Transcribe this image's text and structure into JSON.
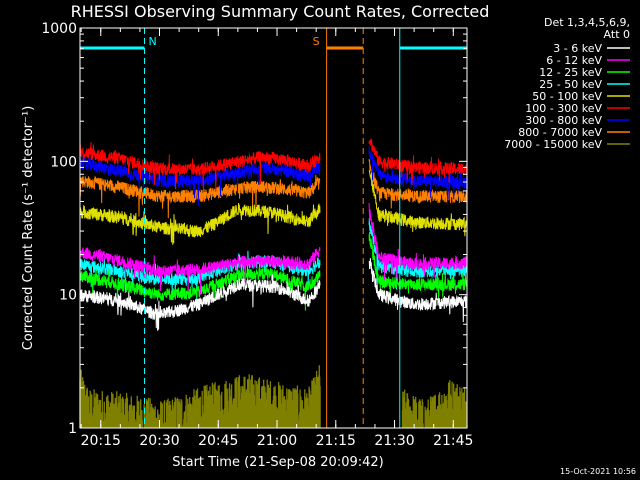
{
  "chart_data": {
    "type": "line",
    "title": "RHESSI Observing Summary Count Rates, Corrected",
    "xlabel": "Start Time (21-Sep-08 20:09:42)",
    "ylabel": "Corrected Count Rate (s⁻¹ detector⁻¹)",
    "yscale": "log",
    "ylim": [
      1,
      1000
    ],
    "xlim": [
      "20:09:42",
      "21:48:30"
    ],
    "x_ticks": [
      "20:15",
      "20:30",
      "20:45",
      "21:00",
      "21:15",
      "21:30",
      "21:45"
    ],
    "y_ticks": [
      "1",
      "10",
      "100",
      "1000"
    ],
    "timestamp": "15-Oct-2021 10:56",
    "legend_header": [
      "Det 1,3,4,5,6,9,",
      "Att 0"
    ],
    "flags": [
      {
        "label": "N",
        "start": "20:09:42",
        "end": "20:26:10",
        "color": "#00ffff"
      },
      {
        "label": "S",
        "start": "21:12:40",
        "end": "21:22:00",
        "color": "#ff8000"
      },
      {
        "label": "",
        "start": "21:31:20",
        "end": "21:48:30",
        "color": "#00ffff"
      }
    ],
    "vertical_markers": [
      {
        "time": "20:09:42",
        "style": "solid",
        "color": "#00ffff"
      },
      {
        "time": "20:26:10",
        "style": "dashed",
        "color": "#00ffff"
      },
      {
        "time": "21:12:40",
        "style": "solid",
        "color": "#ff8000"
      },
      {
        "time": "21:22:00",
        "style": "dashed",
        "color": "#ff8000"
      },
      {
        "time": "21:31:20",
        "style": "solid",
        "color": "#00ffff"
      },
      {
        "time": "21:48:30",
        "style": "dashed",
        "color": "#00ffff"
      }
    ],
    "gap": [
      "21:11:30",
      "21:23:30"
    ],
    "series": [
      {
        "name": "3 - 6 keV",
        "color": "#ffffff",
        "before": [
          [
            "20:09:42",
            10.0
          ],
          [
            "20:20:00",
            9.0
          ],
          [
            "20:30:00",
            7.0
          ],
          [
            "20:40:00",
            8.5
          ],
          [
            "20:50:00",
            12.0
          ],
          [
            "21:00:00",
            11.5
          ],
          [
            "21:08:00",
            9.0
          ],
          [
            "21:11:00",
            12.0
          ]
        ],
        "after": [
          [
            "21:23:30",
            18.0
          ],
          [
            "21:26:00",
            10.0
          ],
          [
            "21:35:00",
            8.5
          ],
          [
            "21:48:30",
            9.0
          ]
        ]
      },
      {
        "name": "6 - 12 keV",
        "color": "#ff00ff",
        "before": [
          [
            "20:09:42",
            21.0
          ],
          [
            "20:20:00",
            18.0
          ],
          [
            "20:30:00",
            15.0
          ],
          [
            "20:40:00",
            15.5
          ],
          [
            "20:50:00",
            17.5
          ],
          [
            "20:58:00",
            18.0
          ],
          [
            "21:08:00",
            17.0
          ],
          [
            "21:11:00",
            22.0
          ]
        ],
        "after": [
          [
            "21:23:30",
            45.0
          ],
          [
            "21:26:00",
            19.0
          ],
          [
            "21:35:00",
            17.0
          ],
          [
            "21:48:30",
            17.5
          ]
        ]
      },
      {
        "name": "12 - 25 keV",
        "color": "#00ff00",
        "before": [
          [
            "20:09:42",
            14.0
          ],
          [
            "20:20:00",
            12.0
          ],
          [
            "20:30:00",
            10.0
          ],
          [
            "20:40:00",
            10.5
          ],
          [
            "20:50:00",
            14.0
          ],
          [
            "20:58:00",
            14.5
          ],
          [
            "21:08:00",
            11.5
          ],
          [
            "21:11:00",
            14.0
          ]
        ],
        "after": [
          [
            "21:23:30",
            28.0
          ],
          [
            "21:26:00",
            12.5
          ],
          [
            "21:35:00",
            12.0
          ],
          [
            "21:48:30",
            12.0
          ]
        ]
      },
      {
        "name": "25 - 50 keV",
        "color": "#00ffff",
        "before": [
          [
            "20:09:42",
            17.0
          ],
          [
            "20:20:00",
            15.0
          ],
          [
            "20:30:00",
            13.0
          ],
          [
            "20:40:00",
            13.5
          ],
          [
            "20:50:00",
            17.0
          ],
          [
            "20:58:00",
            18.0
          ],
          [
            "21:08:00",
            15.0
          ],
          [
            "21:11:00",
            18.0
          ]
        ],
        "after": [
          [
            "21:23:30",
            35.0
          ],
          [
            "21:26:00",
            16.5
          ],
          [
            "21:35:00",
            15.0
          ],
          [
            "21:48:30",
            15.5
          ]
        ]
      },
      {
        "name": "50 - 100 keV",
        "color": "#e0e000",
        "before": [
          [
            "20:09:42",
            42.0
          ],
          [
            "20:20:00",
            38.0
          ],
          [
            "20:30:00",
            32.0
          ],
          [
            "20:40:00",
            30.0
          ],
          [
            "20:44:00",
            34.0
          ],
          [
            "20:50:00",
            44.0
          ],
          [
            "20:58:00",
            42.0
          ],
          [
            "21:08:00",
            35.0
          ],
          [
            "21:11:00",
            45.0
          ]
        ],
        "after": [
          [
            "21:23:30",
            90.0
          ],
          [
            "21:26:00",
            40.0
          ],
          [
            "21:35:00",
            35.0
          ],
          [
            "21:48:30",
            34.0
          ]
        ]
      },
      {
        "name": "100 - 300 keV",
        "color": "#ff0000",
        "before": [
          [
            "20:09:42",
            118.0
          ],
          [
            "20:20:00",
            105.0
          ],
          [
            "20:30:00",
            88.0
          ],
          [
            "20:40:00",
            87.0
          ],
          [
            "20:50:00",
            100.0
          ],
          [
            "20:56:00",
            108.0
          ],
          [
            "21:02:00",
            103.0
          ],
          [
            "21:08:00",
            92.0
          ],
          [
            "21:11:00",
            110.0
          ]
        ],
        "after": [
          [
            "21:23:30",
            150.0
          ],
          [
            "21:26:00",
            100.0
          ],
          [
            "21:35:00",
            90.0
          ],
          [
            "21:48:30",
            88.0
          ]
        ]
      },
      {
        "name": "300 - 800 keV",
        "color": "#0000ff",
        "before": [
          [
            "20:09:42",
            98.0
          ],
          [
            "20:20:00",
            85.0
          ],
          [
            "20:30:00",
            72.0
          ],
          [
            "20:40:00",
            72.0
          ],
          [
            "20:50:00",
            83.0
          ],
          [
            "20:56:00",
            90.0
          ],
          [
            "21:02:00",
            86.0
          ],
          [
            "21:08:00",
            77.0
          ],
          [
            "21:11:00",
            95.0
          ]
        ],
        "after": [
          [
            "21:23:30",
            120.0
          ],
          [
            "21:26:00",
            80.0
          ],
          [
            "21:35:00",
            72.0
          ],
          [
            "21:48:30",
            70.0
          ]
        ]
      },
      {
        "name": "800 - 7000 keV",
        "color": "#ff8000",
        "before": [
          [
            "20:09:42",
            72.0
          ],
          [
            "20:20:00",
            64.0
          ],
          [
            "20:30:00",
            55.0
          ],
          [
            "20:40:00",
            55.0
          ],
          [
            "20:50:00",
            63.0
          ],
          [
            "20:56:00",
            65.0
          ],
          [
            "21:02:00",
            62.0
          ],
          [
            "21:08:00",
            58.0
          ],
          [
            "21:11:00",
            70.0
          ]
        ],
        "after": [
          [
            "21:23:30",
            95.0
          ],
          [
            "21:26:00",
            58.0
          ],
          [
            "21:35:00",
            55.0
          ],
          [
            "21:48:30",
            54.0
          ]
        ]
      },
      {
        "name": "7000 - 15000 keV",
        "color": "#808000",
        "before": [
          [
            "20:09:42",
            2.3
          ],
          [
            "20:12:00",
            1.6
          ],
          [
            "20:20:00",
            1.5
          ],
          [
            "20:31:00",
            1.3
          ],
          [
            "20:42:00",
            1.7
          ],
          [
            "20:52:00",
            2.1
          ],
          [
            "21:00:00",
            1.8
          ],
          [
            "21:08:00",
            1.6
          ],
          [
            "21:11:00",
            2.5
          ]
        ],
        "after": [
          [
            "21:32:00",
            1.6
          ],
          [
            "21:38:00",
            1.3
          ],
          [
            "21:44:00",
            1.9
          ],
          [
            "21:48:30",
            1.7
          ]
        ]
      }
    ]
  }
}
